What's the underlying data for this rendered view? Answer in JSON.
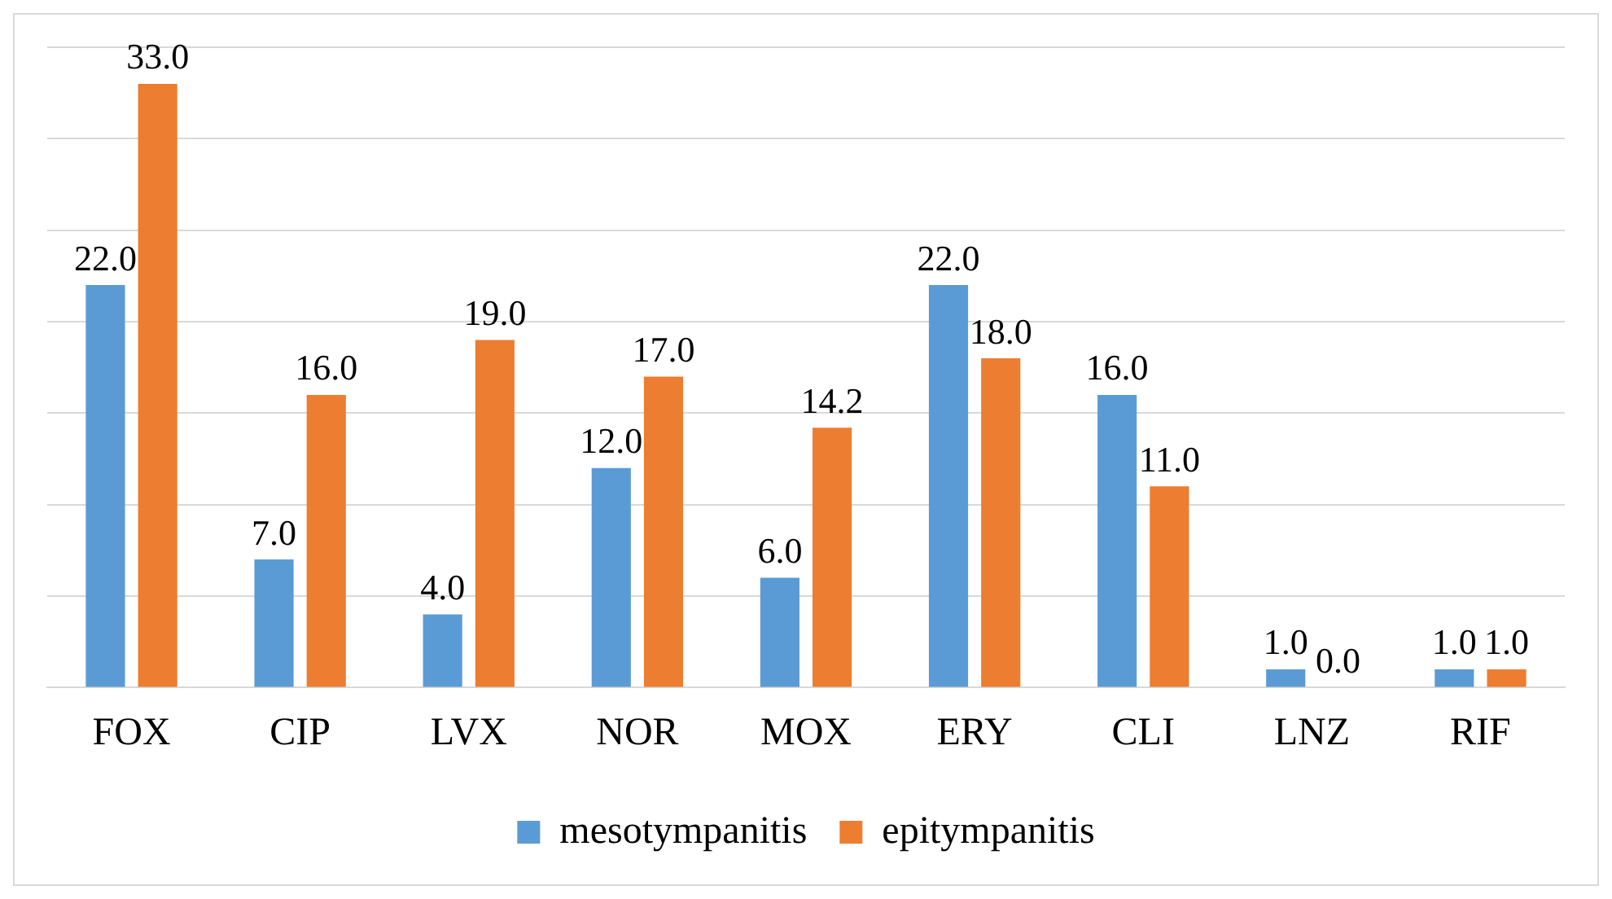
{
  "chart_data": {
    "type": "bar",
    "categories": [
      "FOX",
      "CIP",
      "LVX",
      "NOR",
      "MOX",
      "ERY",
      "CLI",
      "LNZ",
      "RIF"
    ],
    "series": [
      {
        "name": "mesotympanitis",
        "color": "#5b9bd5",
        "values": [
          22,
          7,
          4,
          12,
          6,
          22,
          16,
          1,
          1
        ],
        "value_labels": [
          "22.0",
          "7.0",
          "4.0",
          "12.0",
          "6.0",
          "22.0",
          "16.0",
          "1.0",
          "1.0"
        ]
      },
      {
        "name": "epitympanitis",
        "color": "#ed7d31",
        "values": [
          33,
          16,
          19,
          17,
          14.2,
          18,
          11,
          0,
          1
        ],
        "value_labels": [
          "33.0",
          "16.0",
          "19.0",
          "17.0",
          "14.2",
          "18.0",
          "11.0",
          "0.0",
          "1.0"
        ]
      }
    ],
    "ylim": [
      0,
      35
    ],
    "yticks": [
      0,
      5,
      10,
      15,
      20,
      25,
      30,
      35
    ],
    "grid": "y",
    "tick_labels": "x",
    "legend": "bottom"
  }
}
